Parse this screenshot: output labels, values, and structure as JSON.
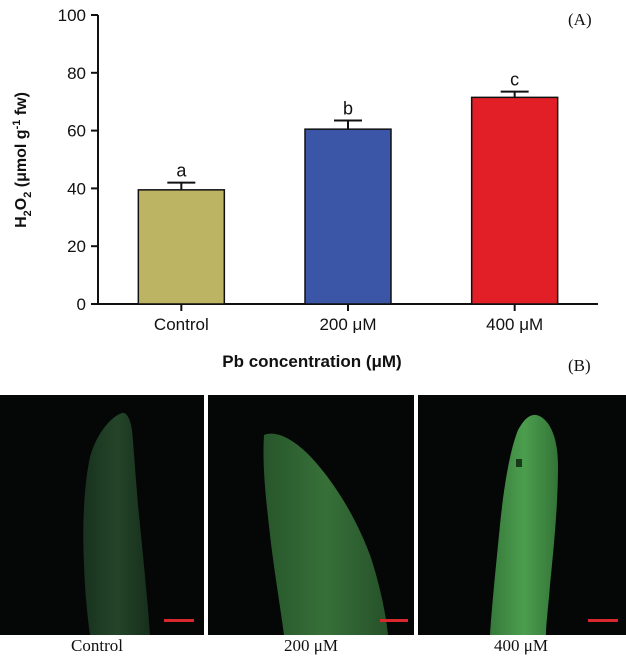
{
  "chart_data": {
    "type": "bar",
    "title": "",
    "panel_label": "(A)",
    "categories": [
      "Control",
      "200 μM",
      "400 μM"
    ],
    "values": [
      39.5,
      60.5,
      71.5
    ],
    "errors": [
      2.5,
      3.0,
      2.0
    ],
    "significance": [
      "a",
      "b",
      "c"
    ],
    "colors": [
      "#bcb462",
      "#3b56a6",
      "#e21f26"
    ],
    "xlabel": "Pb concentration (μM)",
    "ylabel": {
      "base": "H",
      "sub1": "2",
      "mid": "O",
      "sub2": "2",
      "rest_before": " (μmol g",
      "sup": "-1",
      "rest_after": " fw)"
    },
    "ylim": [
      0,
      100
    ],
    "yticks": [
      "0",
      "20",
      "40",
      "60",
      "80",
      "100"
    ],
    "grid": false
  },
  "panel_b": {
    "label": "(B)",
    "images": [
      {
        "caption": "Control",
        "intensity": "dim"
      },
      {
        "caption": "200 μM",
        "intensity": "medium"
      },
      {
        "caption": "400 μM",
        "intensity": "bright"
      }
    ]
  }
}
